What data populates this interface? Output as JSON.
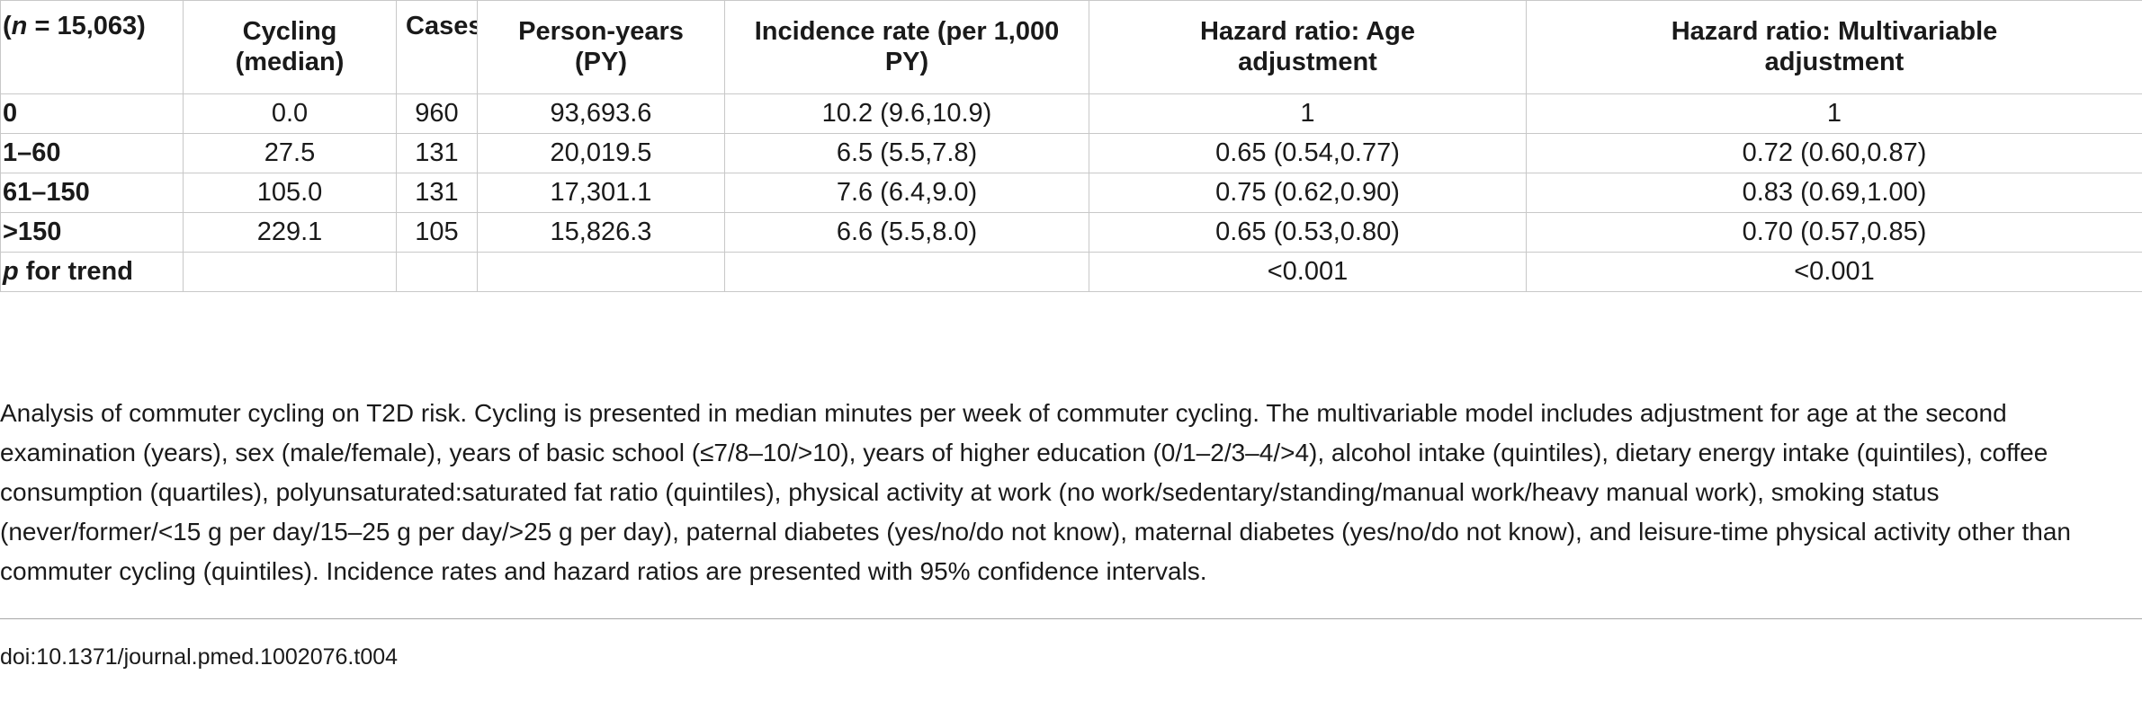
{
  "table": {
    "headers": [
      {
        "pre": "(",
        "italic": "n",
        "post": " = 15,063)"
      },
      {
        "line1": "Cycling",
        "line2": "(median)"
      },
      {
        "line1": "Cases",
        "line2": ""
      },
      {
        "line1": "Person-years",
        "line2": "(PY)"
      },
      {
        "line1": "Incidence rate (per 1,000",
        "line2": "PY)"
      },
      {
        "line1": "Hazard ratio: Age",
        "line2": "adjustment"
      },
      {
        "line1": "Hazard ratio: Multivariable",
        "line2": "adjustment"
      }
    ],
    "rows": [
      {
        "label": "0",
        "cycling": "0.0",
        "cases": "960",
        "py": "93,693.6",
        "ir": "10.2 (9.6,10.9)",
        "hr_age": "1",
        "hr_multi": "1"
      },
      {
        "label": "1–60",
        "cycling": "27.5",
        "cases": "131",
        "py": "20,019.5",
        "ir": "6.5 (5.5,7.8)",
        "hr_age": "0.65 (0.54,0.77)",
        "hr_multi": "0.72 (0.60,0.87)"
      },
      {
        "label": "61–150",
        "cycling": "105.0",
        "cases": "131",
        "py": "17,301.1",
        "ir": "7.6 (6.4,9.0)",
        "hr_age": "0.75 (0.62,0.90)",
        "hr_multi": "0.83 (0.69,1.00)"
      },
      {
        "label": ">150",
        "cycling": "229.1",
        "cases": "105",
        "py": "15,826.3",
        "ir": "6.6 (5.5,8.0)",
        "hr_age": "0.65 (0.53,0.80)",
        "hr_multi": "0.70 (0.57,0.85)"
      }
    ],
    "trend_row": {
      "label_italic": "p",
      "label_rest": " for trend",
      "cycling": "",
      "cases": "",
      "py": "",
      "ir": "",
      "hr_age": "<0.001",
      "hr_multi": "<0.001"
    }
  },
  "caption": "Analysis of commuter cycling on T2D risk. Cycling is presented in median minutes per week of commuter cycling. The multivariable model includes adjustment for age at the second examination (years), sex (male/female), years of basic school (≤7/8–10/>10), years of higher education (0/1–2/3–4/>4), alcohol intake (quintiles), dietary energy intake (quintiles), coffee consumption (quartiles), polyunsaturated:saturated fat ratio (quintiles), physical activity at work (no work/sedentary/standing/manual work/heavy manual work), smoking status (never/former/<15 g per day/15–25 g per day/>25 g per day), paternal diabetes (yes/no/do not know), maternal diabetes (yes/no/do not know), and leisure-time physical activity other than commuter cycling (quintiles). Incidence rates and hazard ratios are presented with 95% confidence intervals.",
  "doi": "doi:10.1371/journal.pmed.1002076.t004"
}
